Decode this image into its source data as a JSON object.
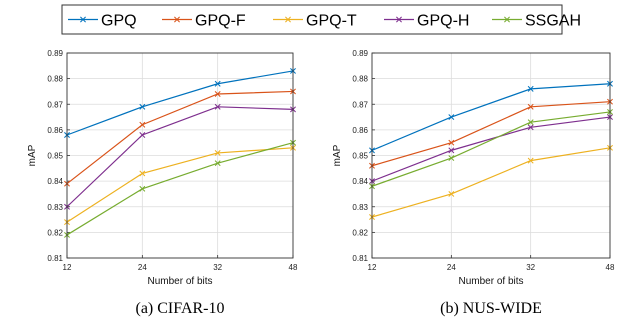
{
  "legend": {
    "entries": [
      {
        "name": "GPQ",
        "color": "#0072BD"
      },
      {
        "name": "GPQ-F",
        "color": "#D95319"
      },
      {
        "name": "GPQ-T",
        "color": "#EDB120"
      },
      {
        "name": "GPQ-H",
        "color": "#7E2F8E"
      },
      {
        "name": "SSGAH",
        "color": "#77AC30"
      }
    ]
  },
  "chart_data": [
    {
      "type": "line",
      "caption": "(a)  CIFAR-10",
      "xlabel": "Number of bits",
      "ylabel": "mAP",
      "x": [
        "12",
        "24",
        "32",
        "48"
      ],
      "ylim": [
        0.81,
        0.89
      ],
      "yticks": [
        "0.81",
        "0.82",
        "0.83",
        "0.84",
        "0.85",
        "0.86",
        "0.87",
        "0.88",
        "0.89"
      ],
      "grid": true,
      "series": [
        {
          "name": "GPQ",
          "color": "#0072BD",
          "values": [
            0.858,
            0.869,
            0.878,
            0.883
          ]
        },
        {
          "name": "GPQ-F",
          "color": "#D95319",
          "values": [
            0.839,
            0.862,
            0.874,
            0.875
          ]
        },
        {
          "name": "GPQ-T",
          "color": "#EDB120",
          "values": [
            0.824,
            0.843,
            0.851,
            0.853
          ]
        },
        {
          "name": "GPQ-H",
          "color": "#7E2F8E",
          "values": [
            0.83,
            0.858,
            0.869,
            0.868
          ]
        },
        {
          "name": "SSGAH",
          "color": "#77AC30",
          "values": [
            0.819,
            0.837,
            0.847,
            0.855
          ]
        }
      ]
    },
    {
      "type": "line",
      "caption": "(b)  NUS-WIDE",
      "xlabel": "Number of bits",
      "ylabel": "mAP",
      "x": [
        "12",
        "24",
        "32",
        "48"
      ],
      "ylim": [
        0.81,
        0.89
      ],
      "yticks": [
        "0.81",
        "0.82",
        "0.83",
        "0.84",
        "0.85",
        "0.86",
        "0.87",
        "0.88",
        "0.89"
      ],
      "grid": true,
      "series": [
        {
          "name": "GPQ",
          "color": "#0072BD",
          "values": [
            0.852,
            0.865,
            0.876,
            0.878
          ]
        },
        {
          "name": "GPQ-F",
          "color": "#D95319",
          "values": [
            0.846,
            0.855,
            0.869,
            0.871
          ]
        },
        {
          "name": "GPQ-T",
          "color": "#EDB120",
          "values": [
            0.826,
            0.835,
            0.848,
            0.853
          ]
        },
        {
          "name": "GPQ-H",
          "color": "#7E2F8E",
          "values": [
            0.84,
            0.852,
            0.861,
            0.865
          ]
        },
        {
          "name": "SSGAH",
          "color": "#77AC30",
          "values": [
            0.838,
            0.849,
            0.863,
            0.867
          ]
        }
      ]
    }
  ]
}
